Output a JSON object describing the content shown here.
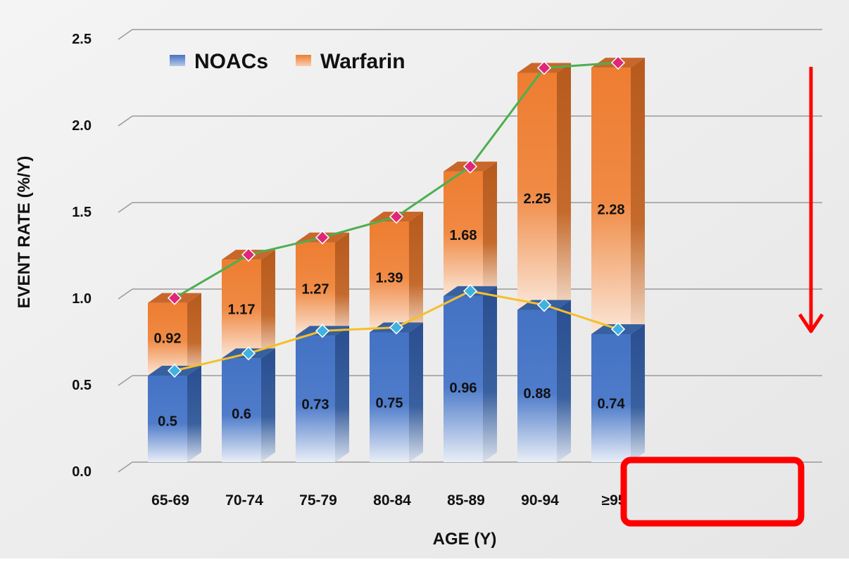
{
  "chart_data": {
    "type": "bar",
    "xlabel": "AGE (Y)",
    "ylabel": "EVENT RATE (%/Y)",
    "ylim": [
      0,
      2.5
    ],
    "yticks": [
      "0.0",
      "0.5",
      "1.0",
      "1.5",
      "2.0",
      "2.5"
    ],
    "categories": [
      "65-69",
      "70-74",
      "75-79",
      "80-84",
      "85-89",
      "90-94",
      "≥95"
    ],
    "series": [
      {
        "name": "NOACs",
        "color": "#4472c4",
        "values": [
          0.5,
          0.6,
          0.73,
          0.75,
          0.96,
          0.88,
          0.74
        ],
        "labels": [
          "0.5",
          "0.6",
          "0.73",
          "0.75",
          "0.96",
          "0.88",
          "0.74"
        ]
      },
      {
        "name": "Warfarin",
        "color": "#ed7d31",
        "values": [
          0.92,
          1.17,
          1.27,
          1.39,
          1.68,
          2.25,
          2.28
        ],
        "labels": [
          "0.92",
          "1.17",
          "1.27",
          "1.39",
          "1.68",
          "2.25",
          "2.28"
        ]
      }
    ],
    "legend_position": "top-left",
    "grid": true,
    "annotations": [
      {
        "kind": "highlight-box",
        "around_categories": [
          "90-94",
          "≥95"
        ],
        "color": "#ff0000"
      },
      {
        "kind": "down-arrow",
        "side": "right",
        "color": "#ff0000"
      }
    ],
    "trend_line_colors": {
      "NOACs": "#f5c02a",
      "Warfarin": "#4caf50"
    },
    "marker_colors": {
      "NOACs": "#3fb2e0",
      "Warfarin": "#e0267a"
    }
  }
}
